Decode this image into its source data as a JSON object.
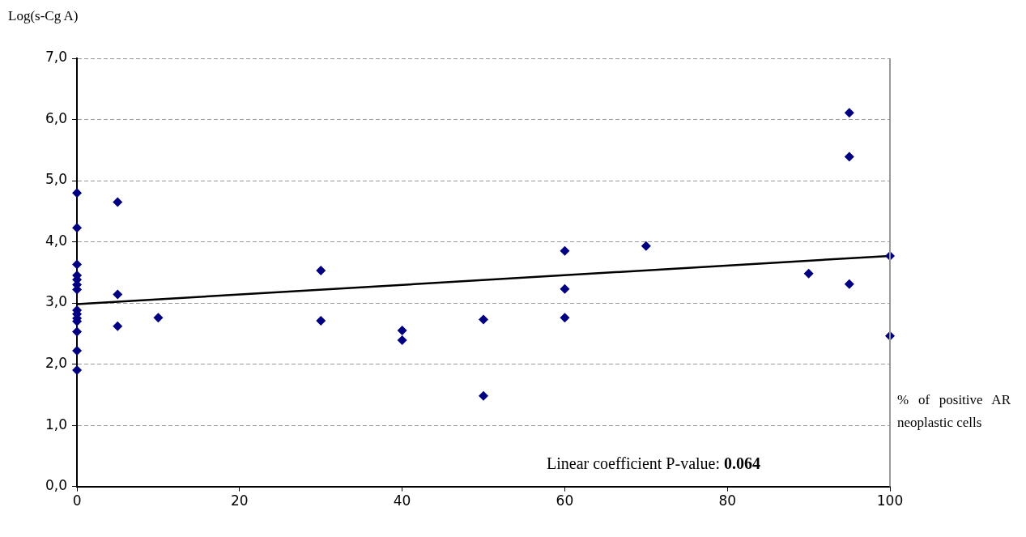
{
  "chart_data": {
    "type": "scatter",
    "ylabel": "Log(s-Cg A)",
    "xlabel": "% of positive AR neoplastic cells",
    "annotations": [
      "Linear coefficient P-value: 0.064"
    ],
    "xlim": [
      0,
      100
    ],
    "xticks": [
      0,
      20,
      40,
      60,
      80,
      100
    ],
    "ylim": [
      0,
      7
    ],
    "yticks": [
      {
        "value": 0,
        "label": "0,0"
      },
      {
        "value": 1,
        "label": "1,0"
      },
      {
        "value": 2,
        "label": "2,0"
      },
      {
        "value": 3,
        "label": "3,0"
      },
      {
        "value": 4,
        "label": "4,0"
      },
      {
        "value": 5,
        "label": "5,0"
      },
      {
        "value": 6,
        "label": "6,0"
      },
      {
        "value": 7,
        "label": "7,0"
      }
    ],
    "grid": "y",
    "legend": false,
    "marker": "diamond",
    "series": [
      {
        "color": "#000080",
        "x": [
          0,
          0,
          0,
          0,
          0,
          0,
          0,
          0,
          0,
          0,
          0,
          0,
          0,
          0,
          5,
          5,
          5,
          10,
          30,
          30,
          40,
          40,
          50,
          50,
          60,
          60,
          60,
          70,
          90,
          95,
          95,
          95,
          100,
          100
        ],
        "values": [
          4.8,
          4.23,
          3.63,
          3.45,
          3.38,
          3.3,
          3.22,
          2.88,
          2.82,
          2.75,
          2.7,
          2.53,
          2.22,
          1.9,
          4.65,
          3.14,
          2.62,
          2.76,
          3.53,
          2.71,
          2.55,
          2.39,
          2.73,
          1.48,
          3.85,
          3.23,
          2.76,
          3.93,
          3.48,
          6.11,
          5.39,
          3.31,
          3.77,
          2.46
        ]
      },
      {
        "type": "line",
        "color": "#000000",
        "marker": "none",
        "line_style": "solid",
        "x": [
          0,
          100
        ],
        "values": [
          2.98,
          3.77
        ]
      }
    ]
  }
}
